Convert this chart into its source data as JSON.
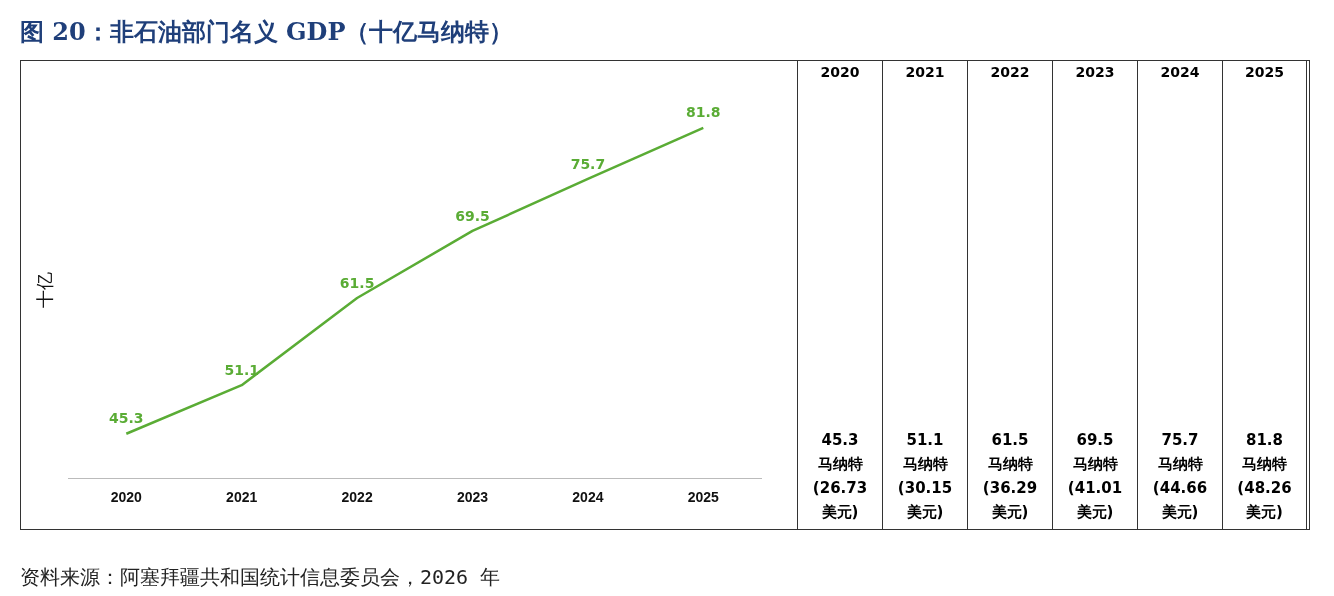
{
  "chart_data": {
    "type": "line",
    "title": "图 20：非石油部门名义 GDP（十亿马纳特）",
    "ylabel": "十亿",
    "categories": [
      "2020",
      "2021",
      "2022",
      "2023",
      "2024",
      "2025"
    ],
    "series": [
      {
        "color": "#5aac35",
        "values": [
          45.3,
          51.1,
          61.5,
          69.5,
          75.7,
          81.8
        ]
      }
    ],
    "data_labels": true,
    "legend": false,
    "grid": false,
    "annotations": [
      "45.3\n马纳特\n(26.73\n美元)",
      "51.1\n马纳特\n(30.15\n美元)",
      "61.5\n马纳特\n(36.29\n美元)",
      "69.5\n马纳特\n(41.01\n美元)",
      "75.7\n马纳特\n(44.66\n美元)",
      "81.8\n马纳特\n(48.26\n美元)",
      "资料来源：阿塞拜疆共和国统计信息委员会，2026 年"
    ]
  }
}
